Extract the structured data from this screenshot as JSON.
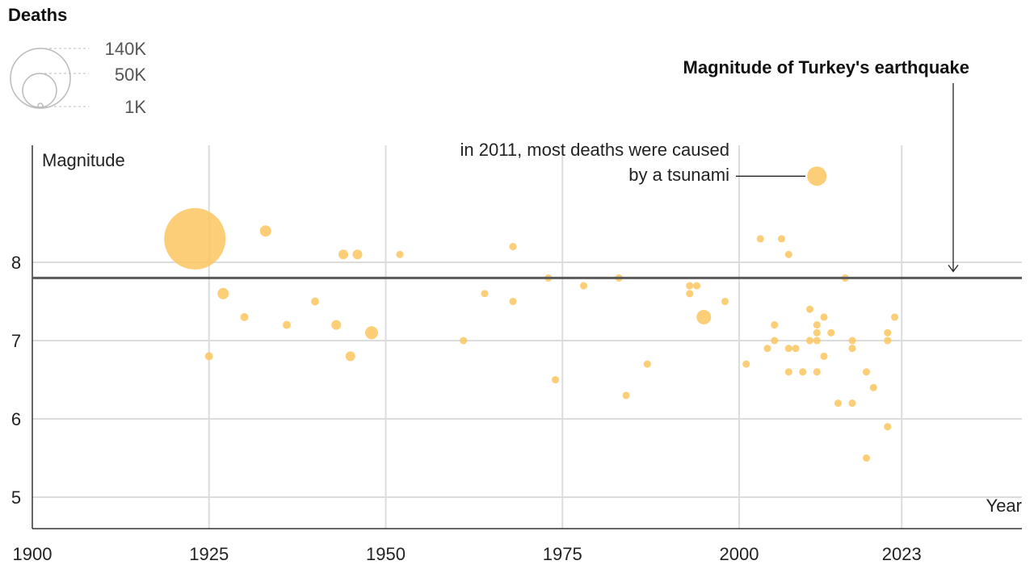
{
  "chart_data": {
    "type": "scatter",
    "title": "Magnitude of Turkey's earthquake",
    "xlabel": "Year",
    "ylabel": "Magnitude",
    "xlim": [
      1900,
      2040
    ],
    "ylim": [
      4.6,
      9.5
    ],
    "x_ticks": [
      "1900",
      "1925",
      "1950",
      "1975",
      "2000",
      "2023"
    ],
    "x_tick_values": [
      1900,
      1925,
      1950,
      1975,
      2000,
      2023
    ],
    "y_ticks": [
      "5",
      "6",
      "7",
      "8"
    ],
    "y_tick_values": [
      5,
      6,
      7,
      8
    ],
    "grid": true,
    "reference_line": {
      "magnitude": 7.8,
      "label": "Magnitude of Turkey's earthquake"
    },
    "annotation": {
      "lines": [
        "in 2011, most deaths were caused",
        "by a tsunami"
      ],
      "year": 2011,
      "magnitude": 9.1
    },
    "size_legend": {
      "title": "Deaths",
      "entries": [
        {
          "label": "140K",
          "value": 140000
        },
        {
          "label": "50K",
          "value": 50000
        },
        {
          "label": "1K",
          "value": 1000
        }
      ]
    },
    "color": "#fcc55f",
    "points": [
      {
        "year": 1923,
        "magnitude": 8.3,
        "deaths": 140000
      },
      {
        "year": 1933,
        "magnitude": 8.4,
        "deaths": 4750
      },
      {
        "year": 1927,
        "magnitude": 7.6,
        "deaths": 4750
      },
      {
        "year": 1930,
        "magnitude": 7.3,
        "deaths": 2400
      },
      {
        "year": 1925,
        "magnitude": 6.8,
        "deaths": 2400
      },
      {
        "year": 1936,
        "magnitude": 7.2,
        "deaths": 2400
      },
      {
        "year": 1940,
        "magnitude": 7.5,
        "deaths": 2400
      },
      {
        "year": 1943,
        "magnitude": 7.2,
        "deaths": 3500
      },
      {
        "year": 1944,
        "magnitude": 8.1,
        "deaths": 3500
      },
      {
        "year": 1946,
        "magnitude": 8.1,
        "deaths": 3500
      },
      {
        "year": 1945,
        "magnitude": 6.8,
        "deaths": 3500
      },
      {
        "year": 1948,
        "magnitude": 7.1,
        "deaths": 6200
      },
      {
        "year": 1952,
        "magnitude": 8.1,
        "deaths": 2000
      },
      {
        "year": 1961,
        "magnitude": 7.0,
        "deaths": 2000
      },
      {
        "year": 1964,
        "magnitude": 7.6,
        "deaths": 2000
      },
      {
        "year": 1968,
        "magnitude": 8.2,
        "deaths": 2000
      },
      {
        "year": 1968,
        "magnitude": 7.5,
        "deaths": 2000
      },
      {
        "year": 1973,
        "magnitude": 7.8,
        "deaths": 2000
      },
      {
        "year": 1974,
        "magnitude": 6.5,
        "deaths": 2000
      },
      {
        "year": 1978,
        "magnitude": 7.7,
        "deaths": 2000
      },
      {
        "year": 1983,
        "magnitude": 7.8,
        "deaths": 2000
      },
      {
        "year": 1984,
        "magnitude": 6.3,
        "deaths": 2000
      },
      {
        "year": 1987,
        "magnitude": 6.7,
        "deaths": 2000
      },
      {
        "year": 1993,
        "magnitude": 7.7,
        "deaths": 2000
      },
      {
        "year": 1994,
        "magnitude": 7.7,
        "deaths": 2000
      },
      {
        "year": 1993,
        "magnitude": 7.6,
        "deaths": 2000
      },
      {
        "year": 1995,
        "magnitude": 7.3,
        "deaths": 7850
      },
      {
        "year": 1998,
        "magnitude": 7.5,
        "deaths": 2000
      },
      {
        "year": 2001,
        "magnitude": 6.7,
        "deaths": 2000
      },
      {
        "year": 2003,
        "magnitude": 8.3,
        "deaths": 2000
      },
      {
        "year": 2004,
        "magnitude": 6.9,
        "deaths": 2000
      },
      {
        "year": 2005,
        "magnitude": 7.2,
        "deaths": 2000
      },
      {
        "year": 2005,
        "magnitude": 7.0,
        "deaths": 2000
      },
      {
        "year": 2006,
        "magnitude": 8.3,
        "deaths": 2000
      },
      {
        "year": 2007,
        "magnitude": 8.1,
        "deaths": 2000
      },
      {
        "year": 2007,
        "magnitude": 6.9,
        "deaths": 2000
      },
      {
        "year": 2008,
        "magnitude": 6.9,
        "deaths": 2000
      },
      {
        "year": 2007,
        "magnitude": 6.6,
        "deaths": 2000
      },
      {
        "year": 2009,
        "magnitude": 6.6,
        "deaths": 2000
      },
      {
        "year": 2010,
        "magnitude": 7.4,
        "deaths": 2000
      },
      {
        "year": 2010,
        "magnitude": 7.0,
        "deaths": 2000
      },
      {
        "year": 2011,
        "magnitude": 9.1,
        "deaths": 14000
      },
      {
        "year": 2011,
        "magnitude": 7.2,
        "deaths": 2000
      },
      {
        "year": 2011,
        "magnitude": 7.1,
        "deaths": 2000
      },
      {
        "year": 2011,
        "magnitude": 7.0,
        "deaths": 2000
      },
      {
        "year": 2011,
        "magnitude": 6.6,
        "deaths": 2000
      },
      {
        "year": 2012,
        "magnitude": 7.3,
        "deaths": 2000
      },
      {
        "year": 2012,
        "magnitude": 6.8,
        "deaths": 2000
      },
      {
        "year": 2013,
        "magnitude": 7.1,
        "deaths": 2000
      },
      {
        "year": 2014,
        "magnitude": 6.2,
        "deaths": 2000
      },
      {
        "year": 2015,
        "magnitude": 7.8,
        "deaths": 2000
      },
      {
        "year": 2016,
        "magnitude": 7.0,
        "deaths": 2000
      },
      {
        "year": 2016,
        "magnitude": 6.9,
        "deaths": 2000
      },
      {
        "year": 2016,
        "magnitude": 6.2,
        "deaths": 2000
      },
      {
        "year": 2018,
        "magnitude": 6.6,
        "deaths": 2000
      },
      {
        "year": 2018,
        "magnitude": 5.5,
        "deaths": 2000
      },
      {
        "year": 2019,
        "magnitude": 6.4,
        "deaths": 2000
      },
      {
        "year": 2021,
        "magnitude": 7.1,
        "deaths": 2000
      },
      {
        "year": 2021,
        "magnitude": 7.0,
        "deaths": 2000
      },
      {
        "year": 2021,
        "magnitude": 5.9,
        "deaths": 2000
      },
      {
        "year": 2022,
        "magnitude": 7.3,
        "deaths": 2000
      }
    ]
  }
}
